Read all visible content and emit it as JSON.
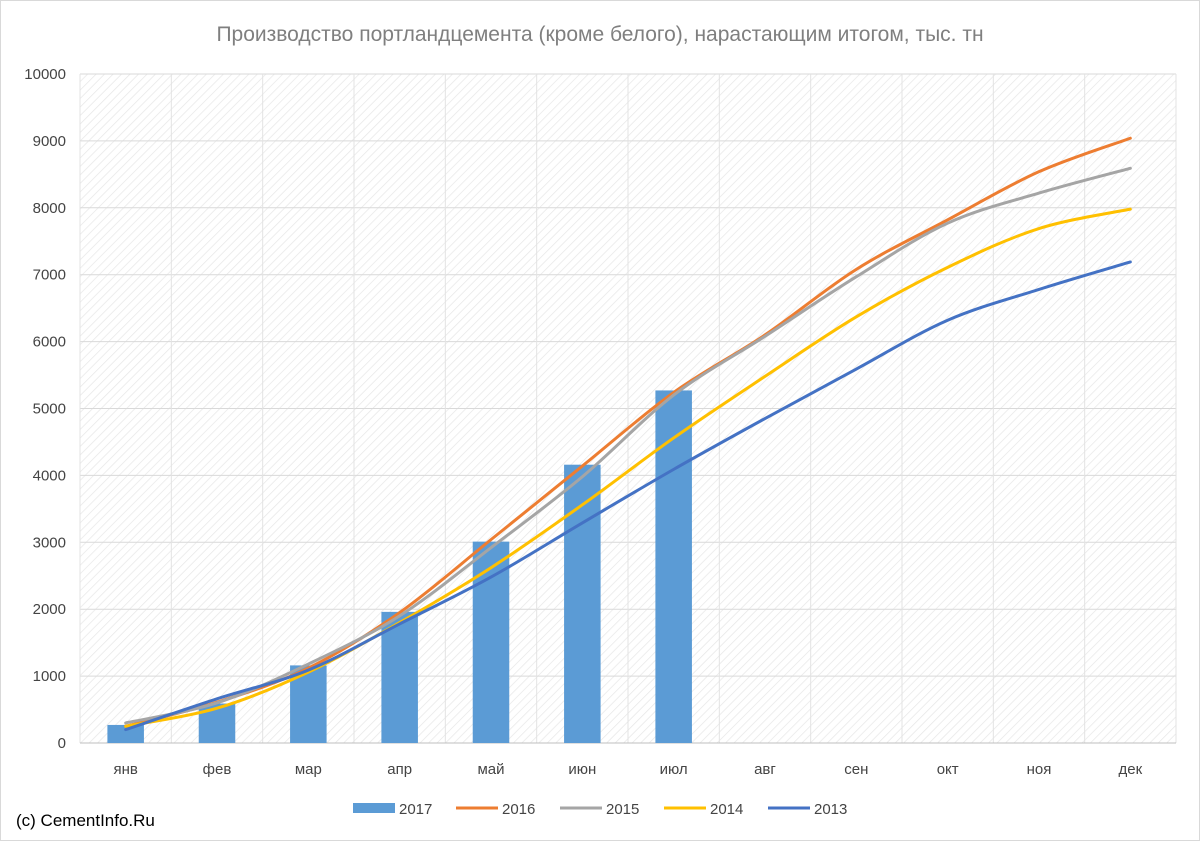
{
  "chart_data": {
    "type": "bar",
    "title": "Производство портландцемента (кроме белого), нарастающим итогом, тыс. тн",
    "categories": [
      "янв",
      "фев",
      "мар",
      "апр",
      "май",
      "июн",
      "июл",
      "авг",
      "сен",
      "окт",
      "ноя",
      "дек"
    ],
    "ylim": [
      0,
      10000
    ],
    "yticks": [
      "0",
      "1000",
      "2000",
      "3000",
      "4000",
      "5000",
      "6000",
      "7000",
      "8000",
      "9000",
      "10000"
    ],
    "grid": true,
    "legend_position": "bottom",
    "series": [
      {
        "name": "2017",
        "kind": "bar",
        "color": "#5b9bd5",
        "values": [
          270,
          590,
          1160,
          1960,
          3010,
          4160,
          5270,
          null,
          null,
          null,
          null,
          null
        ]
      },
      {
        "name": "2016",
        "kind": "line",
        "color": "#ed7d31",
        "values": [
          250,
          610,
          1120,
          1950,
          3040,
          4140,
          5240,
          6100,
          7080,
          7820,
          8540,
          9040
        ]
      },
      {
        "name": "2015",
        "kind": "line",
        "color": "#a5a5a5",
        "values": [
          300,
          600,
          1180,
          1900,
          2920,
          3980,
          5200,
          6080,
          6970,
          7770,
          8220,
          8590
        ]
      },
      {
        "name": "2014",
        "kind": "line",
        "color": "#ffc000",
        "values": [
          250,
          520,
          1060,
          1800,
          2620,
          3560,
          4560,
          5480,
          6370,
          7110,
          7690,
          7980
        ]
      },
      {
        "name": "2013",
        "kind": "line",
        "color": "#4472c4",
        "values": [
          200,
          660,
          1090,
          1780,
          2480,
          3290,
          4090,
          4850,
          5590,
          6320,
          6780,
          7190
        ]
      }
    ]
  },
  "source_note": "(c) CementInfo.Ru"
}
